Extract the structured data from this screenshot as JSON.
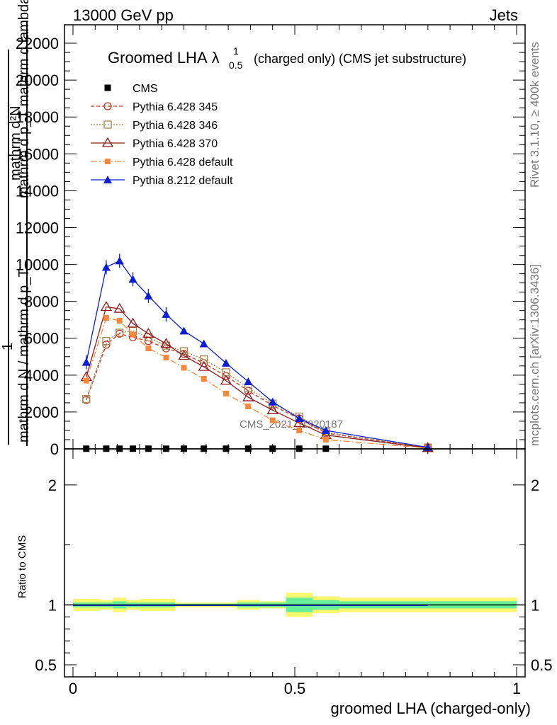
{
  "header": {
    "beam": "13000 GeV pp",
    "category": "Jets",
    "rivet_label": "Rivet 3.1.10, ≥ 400k events",
    "mcplots_label": "mcplots.cern.ch [arXiv:1306.3436]",
    "watermark": "CMS_2021_I1920187"
  },
  "title": {
    "main": "Groomed LHA",
    "lambda": "λ",
    "sup": "1",
    "sub": "0.5",
    "rest": "(charged only) (CMS jet substructure)"
  },
  "colors": {
    "cms": "#000000",
    "py345": "#c0392b",
    "py346": "#a08850",
    "py370": "#8b1a1a",
    "pydef": "#f5883a",
    "py8": "#0a1fd1",
    "band_inner": "#66ee99",
    "band_outer": "#f8f86a"
  },
  "chart_data": [
    {
      "type": "line",
      "panel": "main",
      "title": "Groomed LHA λ^1_0.5 (charged only) (CMS jet substructure)",
      "ylabel": "1 / mathrm d N / mathrm d p_T mathrm d^2N / mathrm d p_T mathrm d lambda",
      "ylabel_parts": {
        "top": "mathrm d²N",
        "middle": "mathrm d p_T mathrm d lambda",
        "numerator": "1",
        "denominator": "mathrm d N / mathrm d p_T"
      },
      "xlabel": "",
      "xlim": [
        0,
        1
      ],
      "ylim": [
        0,
        23000
      ],
      "y_ticks": [
        0,
        2000,
        4000,
        6000,
        8000,
        10000,
        12000,
        14000,
        16000,
        18000,
        20000,
        22000
      ],
      "y_tick_labels": [
        "0",
        "2000",
        "4000",
        "6000",
        "8000",
        "10000",
        "12000",
        "14000",
        "16000",
        "18000",
        "20000",
        "22000"
      ],
      "x": [
        0.03,
        0.075,
        0.105,
        0.135,
        0.17,
        0.21,
        0.25,
        0.295,
        0.345,
        0.395,
        0.45,
        0.51,
        0.57,
        0.8
      ],
      "series": [
        {
          "name": "CMS",
          "style": "cms",
          "x": [
            0.03,
            0.075,
            0.105,
            0.135,
            0.17,
            0.21,
            0.25,
            0.295,
            0.345,
            0.395,
            0.45,
            0.51,
            0.57
          ],
          "values": [
            10,
            10,
            10,
            10,
            10,
            10,
            10,
            10,
            10,
            10,
            10,
            10,
            10
          ]
        },
        {
          "name": "Pythia 6.428 345",
          "style": "py345",
          "values": [
            2650,
            5650,
            6250,
            6050,
            5850,
            5450,
            5150,
            4650,
            3950,
            3150,
            2350,
            1650,
            850,
            60
          ]
        },
        {
          "name": "Pythia 6.428 346",
          "style": "py346",
          "values": [
            2700,
            5850,
            6300,
            6400,
            6050,
            5600,
            5300,
            4850,
            4150,
            3300,
            2450,
            1750,
            900,
            70
          ]
        },
        {
          "name": "Pythia 6.428 370",
          "style": "py370",
          "values": [
            3900,
            7700,
            7600,
            6800,
            6250,
            5700,
            5050,
            4450,
            3700,
            2800,
            2100,
            1400,
            750,
            50
          ]
        },
        {
          "name": "Pythia 6.428 default",
          "style": "pydef",
          "values": [
            3700,
            7100,
            6950,
            6200,
            5450,
            4950,
            4400,
            3800,
            3000,
            2300,
            1550,
            1000,
            500,
            40
          ]
        },
        {
          "name": "Pythia 8.212 default",
          "style": "py8",
          "values": [
            4700,
            9850,
            10200,
            9200,
            8300,
            7300,
            6400,
            5700,
            4650,
            3650,
            2550,
            1650,
            1000,
            80
          ]
        }
      ],
      "legend": [
        "CMS",
        "Pythia 6.428 345",
        "Pythia 6.428 346",
        "Pythia 6.428 370",
        "Pythia 6.428 default",
        "Pythia 8.212 default"
      ]
    },
    {
      "type": "line",
      "panel": "ratio",
      "ylabel": "Ratio to CMS",
      "xlabel": "groomed LHA (charged-only)",
      "xlim": [
        0,
        1
      ],
      "ylim": [
        0.4,
        2.3
      ],
      "y_ticks": [
        0.5,
        1,
        2
      ],
      "y_tick_labels": [
        "0.5",
        "1",
        "2"
      ],
      "x_ticks": [
        0,
        0.5,
        1
      ],
      "x_tick_labels": [
        "0",
        "0.5",
        "1"
      ],
      "reference": 1,
      "bins": [
        0,
        0.06,
        0.09,
        0.12,
        0.15,
        0.19,
        0.23,
        0.27,
        0.32,
        0.37,
        0.42,
        0.48,
        0.54,
        0.6,
        1
      ],
      "band_inner": [
        0.02,
        0.02,
        0.03,
        0.02,
        0.02,
        0.02,
        0.01,
        0.01,
        0.01,
        0.02,
        0.02,
        0.06,
        0.04,
        0.03
      ],
      "band_outer": [
        0.05,
        0.04,
        0.06,
        0.04,
        0.05,
        0.05,
        0.02,
        0.02,
        0.02,
        0.04,
        0.03,
        0.1,
        0.07,
        0.06
      ]
    }
  ]
}
